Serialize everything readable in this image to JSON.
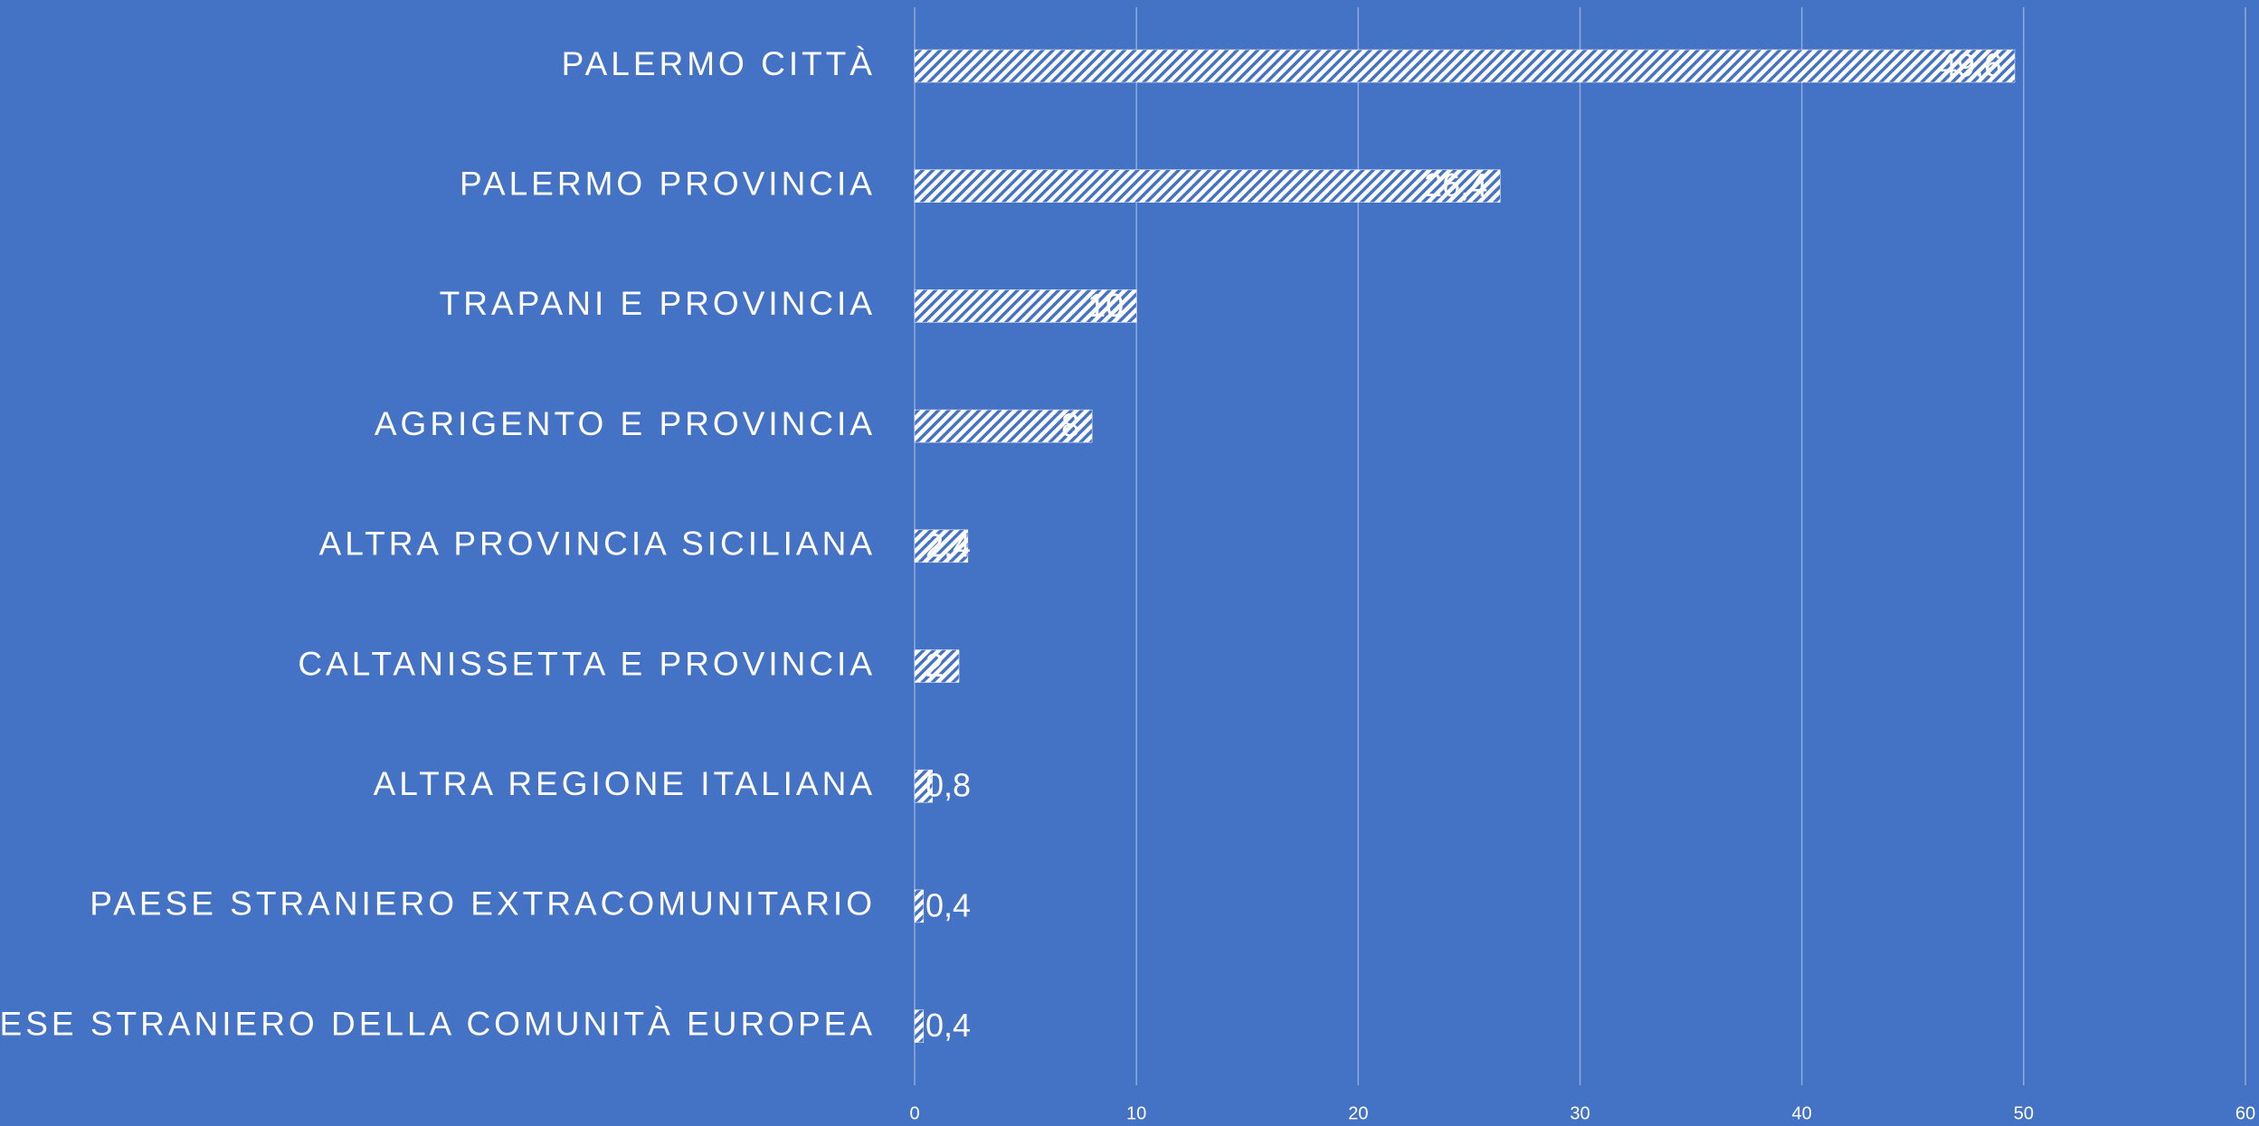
{
  "chart_data": {
    "type": "bar",
    "orientation": "horizontal",
    "categories": [
      "PALERMO CITTÀ",
      "PALERMO PROVINCIA",
      "TRAPANI E PROVINCIA",
      "AGRIGENTO E PROVINCIA",
      "ALTRA PROVINCIA SICILIANA",
      "CALTANISSETTA E PROVINCIA",
      "ALTRA REGIONE ITALIANA",
      "PAESE STRANIERO EXTRACOMUNITARIO",
      "PAESE STRANIERO DELLA COMUNITÀ EUROPEA"
    ],
    "values": [
      49.6,
      26.4,
      10,
      8,
      2.4,
      2,
      0.8,
      0.4,
      0.4
    ],
    "value_labels": [
      "49,6",
      "26,4",
      "10",
      "8",
      "2,4",
      "2",
      "0,8",
      "0,4",
      "0,4"
    ],
    "color": "#ffffff",
    "xlim": [
      0,
      60
    ],
    "xticks": [
      0,
      10,
      20,
      30,
      40,
      50,
      60
    ],
    "grid": true
  }
}
